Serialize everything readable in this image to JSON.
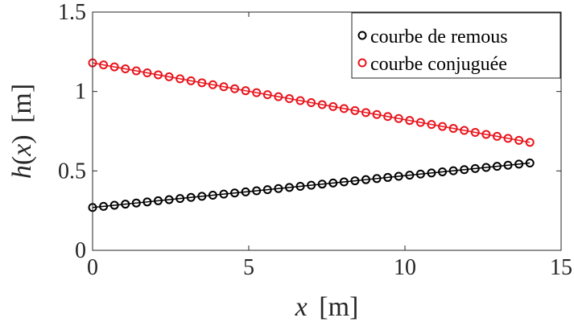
{
  "chart_data": {
    "type": "line",
    "title": "",
    "xlabel": {
      "var": "x",
      "unit": "[m]"
    },
    "ylabel": {
      "func": "h",
      "open": "(",
      "var": "x",
      "close": ")",
      "unit": "[m]"
    },
    "xlim": [
      0,
      15
    ],
    "ylim": [
      0,
      1.5
    ],
    "xticks": [
      0,
      5,
      10,
      15
    ],
    "xtick_labels": [
      "0",
      "5",
      "10",
      "15"
    ],
    "yticks": [
      0,
      0.5,
      1,
      1.5
    ],
    "ytick_labels": [
      "0",
      "0.5",
      "1",
      "1.5"
    ],
    "grid": false,
    "legend_position": "top-right",
    "x": [
      0,
      0.35,
      0.7,
      1.05,
      1.4,
      1.75,
      2.1,
      2.45,
      2.8,
      3.15,
      3.5,
      3.85,
      4.2,
      4.55,
      4.9,
      5.25,
      5.6,
      5.95,
      6.3,
      6.65,
      7.0,
      7.35,
      7.7,
      8.05,
      8.4,
      8.75,
      9.1,
      9.45,
      9.8,
      10.15,
      10.5,
      10.85,
      11.2,
      11.55,
      11.9,
      12.25,
      12.6,
      12.95,
      13.3,
      13.65,
      14.0
    ],
    "series": [
      {
        "name": "courbe de remous",
        "color": "#000000",
        "marker": "circle",
        "y": [
          0.27,
          0.277,
          0.284,
          0.291,
          0.298,
          0.305,
          0.312,
          0.319,
          0.326,
          0.333,
          0.34,
          0.347,
          0.354,
          0.361,
          0.368,
          0.375,
          0.382,
          0.389,
          0.396,
          0.403,
          0.41,
          0.417,
          0.424,
          0.431,
          0.438,
          0.445,
          0.452,
          0.459,
          0.466,
          0.473,
          0.48,
          0.487,
          0.494,
          0.501,
          0.508,
          0.515,
          0.522,
          0.529,
          0.536,
          0.543,
          0.55
        ]
      },
      {
        "name": "courbe conjuguée",
        "color": "#e8141c",
        "marker": "circle",
        "y": [
          1.18,
          1.1675,
          1.155,
          1.1425,
          1.13,
          1.1175,
          1.105,
          1.0925,
          1.08,
          1.0675,
          1.055,
          1.0425,
          1.03,
          1.0175,
          1.005,
          0.9925,
          0.98,
          0.9675,
          0.955,
          0.9425,
          0.93,
          0.9175,
          0.905,
          0.8925,
          0.88,
          0.8675,
          0.855,
          0.8425,
          0.83,
          0.8175,
          0.805,
          0.7925,
          0.78,
          0.7675,
          0.755,
          0.7425,
          0.73,
          0.7175,
          0.705,
          0.6925,
          0.68
        ]
      }
    ]
  }
}
